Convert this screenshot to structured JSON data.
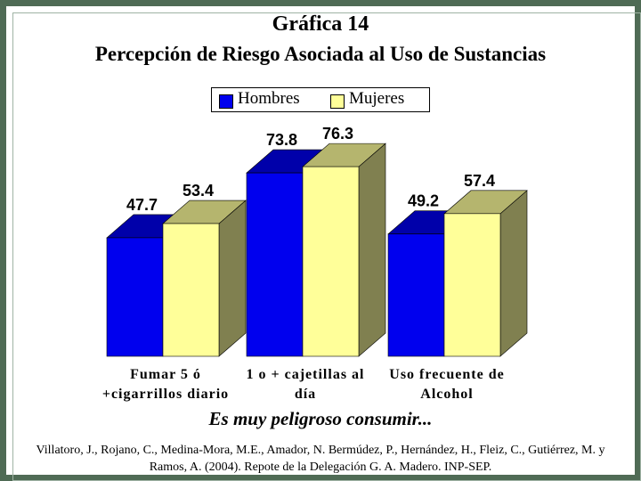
{
  "title_line1": "Gráfica 14",
  "title_line2": "Percepción de Riesgo Asociada al Uso de Sustancias",
  "subtitle": "Es muy peligroso consumir...",
  "source": "Villatoro, J., Rojano, C., Medina-Mora, M.E., Amador, N. Bermúdez, P., Hernández, H., Fleiz, C., Gutiérrez, M. y Ramos, A. (2004). Repote de la Delegación G. A. Madero. INP-SEP.",
  "colors": {
    "hombres_front": "#0000ee",
    "hombres_top": "#0000aa",
    "mujeres_front": "#ffff99",
    "mujeres_top": "#b5b56e",
    "side": "#808050",
    "frame": "#4f6b55"
  },
  "chart_data": {
    "type": "bar",
    "categories": [
      [
        "Fumar 5 ó",
        "+cigarrillos diario"
      ],
      [
        "1 o + cajetillas al",
        "día"
      ],
      [
        "Uso frecuente de",
        "Alcohol"
      ]
    ],
    "series": [
      {
        "name": "Hombres",
        "values": [
          47.7,
          73.8,
          49.2
        ]
      },
      {
        "name": "Mujeres",
        "values": [
          53.4,
          76.3,
          57.4
        ]
      }
    ],
    "ylim": [
      0,
      100
    ],
    "legend_position": "top",
    "grid": false,
    "data_labels": true
  }
}
